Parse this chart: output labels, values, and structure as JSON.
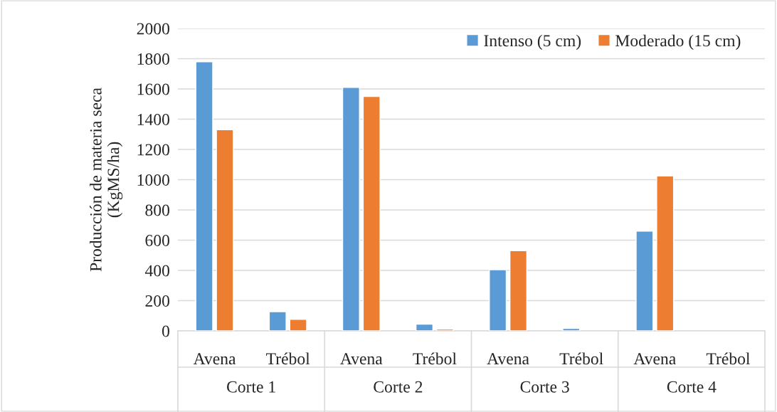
{
  "chart_data": {
    "type": "bar",
    "ylabel": "Producción de materia seca\n(KgMS/ha)",
    "categories": [
      "Avena",
      "Trébol",
      "Avena",
      "Trébol",
      "Avena",
      "Trébol",
      "Avena",
      "Trébol"
    ],
    "annotations": [
      "Corte 1",
      "Corte 2",
      "Corte 3",
      "Corte 4"
    ],
    "series": [
      {
        "name": "Intenso (5 cm)",
        "color": "#5b9bd5",
        "values": [
          1780,
          127,
          1610,
          44,
          405,
          16,
          660,
          null
        ]
      },
      {
        "name": "Moderado (15 cm)",
        "color": "#ed7d31",
        "values": [
          1330,
          76,
          1550,
          11,
          530,
          null,
          1025,
          null
        ]
      }
    ],
    "ylim": [
      0,
      2000
    ],
    "yticks": [
      0,
      200,
      400,
      600,
      800,
      1000,
      1200,
      1400,
      1600,
      1800,
      2000
    ],
    "grid": "y",
    "legend": "top right"
  }
}
